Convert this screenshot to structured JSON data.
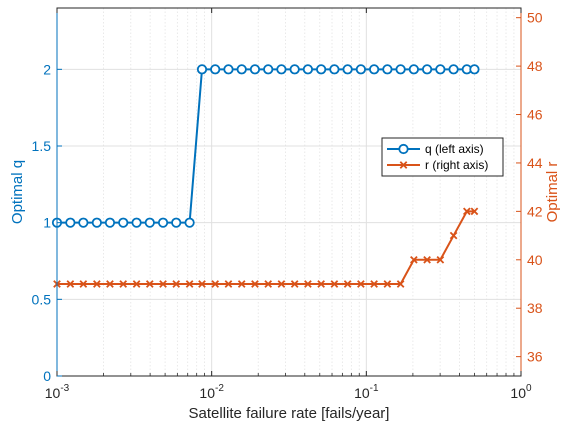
{
  "chart_data": {
    "type": "line",
    "xlabel": "Satellite failure rate [fails/year]",
    "ylabel_left": "Optimal q",
    "ylabel_right": "Optimal r",
    "xscale": "log",
    "xlim": [
      0.001,
      1
    ],
    "ylim_left": [
      0,
      2.4
    ],
    "ylim_right": [
      35.2,
      50.4
    ],
    "grid": true,
    "minor_grid": true,
    "legend_position": "right-center",
    "x_ticks": [
      {
        "value": 0.001,
        "base": "10",
        "exp": "-3"
      },
      {
        "value": 0.01,
        "base": "10",
        "exp": "-2"
      },
      {
        "value": 0.1,
        "base": "10",
        "exp": "-1"
      },
      {
        "value": 1,
        "base": "10",
        "exp": "0"
      }
    ],
    "y_left_ticks": [
      0,
      0.5,
      1,
      1.5,
      2
    ],
    "y_left_tick_labels": [
      "0",
      "0.5",
      "1",
      "1.5",
      "2"
    ],
    "y_right_ticks": [
      36,
      38,
      40,
      42,
      44,
      46,
      48,
      50
    ],
    "y_right_tick_labels": [
      "36",
      "38",
      "40",
      "42",
      "44",
      "46",
      "48",
      "50"
    ],
    "colors": {
      "left": "#0072BD",
      "right": "#D95319"
    },
    "series": [
      {
        "name": "q (left axis)",
        "axis": "left",
        "marker": "circle",
        "color": "#0072BD",
        "x": [
          0.001,
          0.00122,
          0.00148,
          0.00181,
          0.0022,
          0.00268,
          0.00327,
          0.00398,
          0.00485,
          0.0059,
          0.0072,
          0.00866,
          0.01054,
          0.01284,
          0.01564,
          0.01905,
          0.0232,
          0.02825,
          0.03441,
          0.0419,
          0.05103,
          0.06215,
          0.0757,
          0.0922,
          0.1123,
          0.1368,
          0.1666,
          0.2029,
          0.2471,
          0.301,
          0.3666,
          0.4465,
          0.5
        ],
        "values": [
          1,
          1,
          1,
          1,
          1,
          1,
          1,
          1,
          1,
          1,
          1,
          2,
          2,
          2,
          2,
          2,
          2,
          2,
          2,
          2,
          2,
          2,
          2,
          2,
          2,
          2,
          2,
          2,
          2,
          2,
          2,
          2,
          2
        ]
      },
      {
        "name": "r (right axis)",
        "axis": "right",
        "marker": "x",
        "color": "#D95319",
        "x": [
          0.001,
          0.00122,
          0.00148,
          0.00181,
          0.0022,
          0.00268,
          0.00327,
          0.00398,
          0.00485,
          0.0059,
          0.0072,
          0.00866,
          0.01054,
          0.01284,
          0.01564,
          0.01905,
          0.0232,
          0.02825,
          0.03441,
          0.0419,
          0.05103,
          0.06215,
          0.0757,
          0.0922,
          0.1123,
          0.1368,
          0.1666,
          0.2029,
          0.2471,
          0.301,
          0.3666,
          0.4465,
          0.5
        ],
        "values": [
          39,
          39,
          39,
          39,
          39,
          39,
          39,
          39,
          39,
          39,
          39,
          39,
          39,
          39,
          39,
          39,
          39,
          39,
          39,
          39,
          39,
          39,
          39,
          39,
          39,
          39,
          39,
          40,
          40,
          40,
          41,
          42,
          42
        ]
      }
    ]
  }
}
